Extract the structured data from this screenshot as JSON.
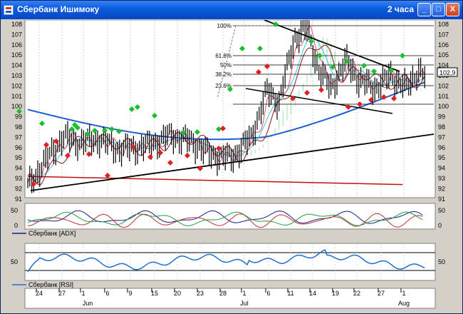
{
  "window": {
    "title": "Сбербанк Ишимоку",
    "timeframe": "2 часа"
  },
  "buttons": {
    "minimize": "_",
    "maximize": "□",
    "close": "X"
  },
  "price_axis": [
    "108",
    "107",
    "106",
    "105",
    "104",
    "103",
    "102",
    "101",
    "100",
    "99",
    "98",
    "97",
    "96",
    "95",
    "94",
    "93",
    "92",
    "91"
  ],
  "current_price": "102,9",
  "fib_levels": [
    "100%",
    "61.8%",
    "50%",
    "38.2%",
    "23.6%"
  ],
  "adx_panel": {
    "legend": "Сбербанк [ADX]",
    "ticks": [
      "50",
      "0"
    ]
  },
  "rsi_panel": {
    "legend": "Сбербанк [RSI]",
    "ticks": [
      "50"
    ]
  },
  "date_axis": {
    "days": [
      "24",
      "27",
      "1",
      "6",
      "9",
      "15",
      "20",
      "23",
      "28",
      "1",
      "6",
      "11",
      "14",
      "19",
      "22",
      "27",
      "1"
    ],
    "months": [
      "Jun",
      "Jul",
      "Aug"
    ]
  },
  "colors": {
    "price_bars": "#000000",
    "kijun": "#8b1a1a",
    "tenkan": "#e05070",
    "ma_blue": "#1f5fd0",
    "cloud": "#5ad07a",
    "span_cyan": "#40c8e8",
    "buy_marker": "#18c030",
    "sell_marker": "#e02020",
    "red_support": "#c01010"
  }
}
